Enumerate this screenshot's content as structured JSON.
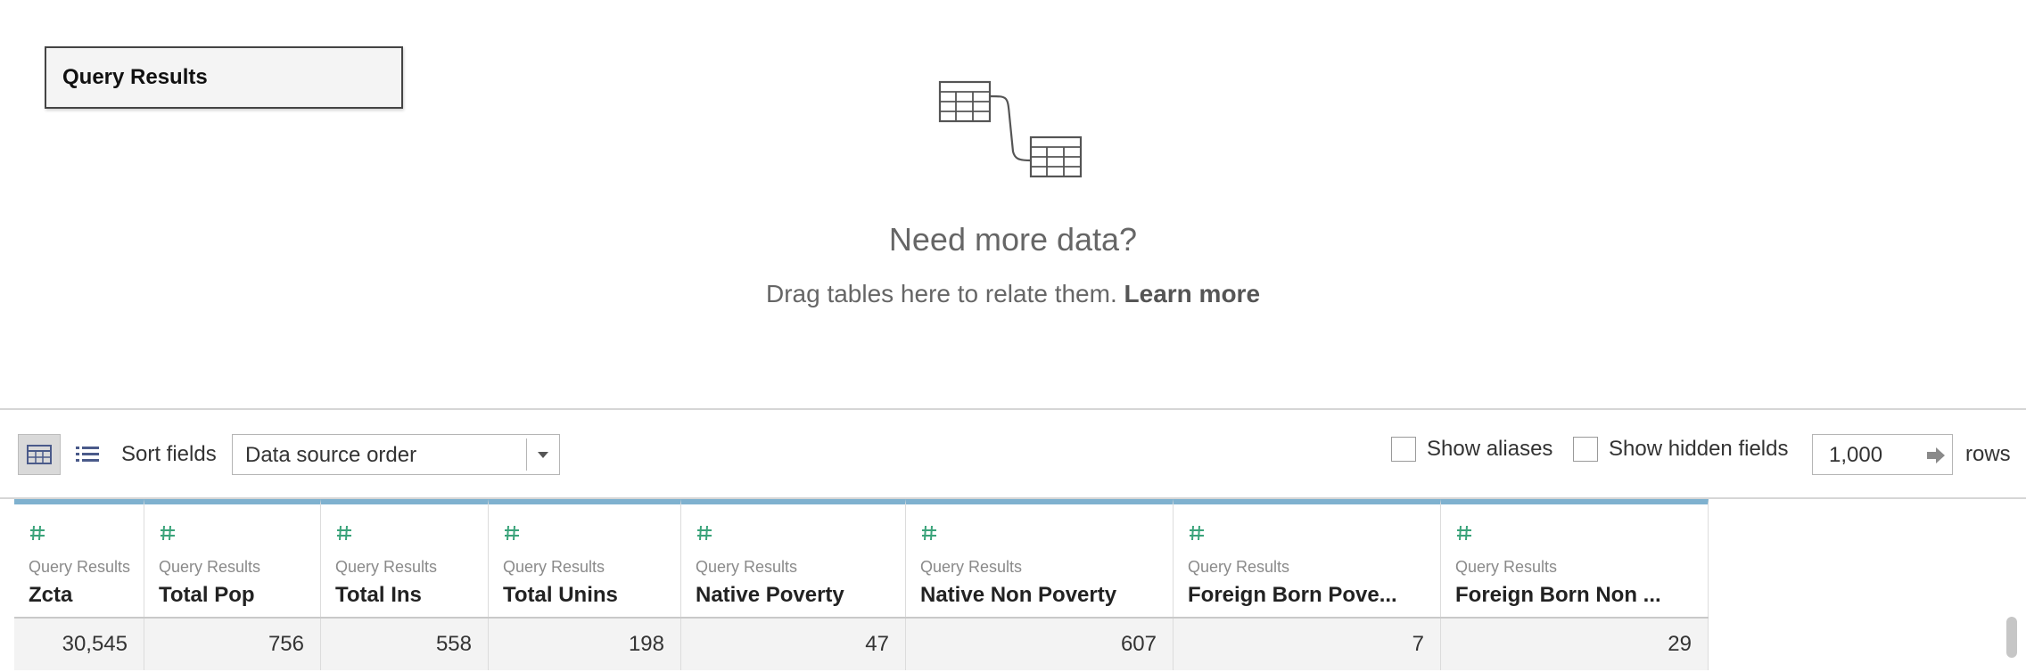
{
  "canvas": {
    "table_name": "Query Results",
    "need_title": "Need more data?",
    "need_sub": "Drag tables here to relate them.",
    "learn_more": "Learn more"
  },
  "toolbar": {
    "grid_view_icon": "grid-view-icon",
    "list_view_icon": "list-view-icon",
    "sort_label": "Sort fields",
    "sort_value": "Data source order",
    "show_aliases": "Show aliases",
    "show_hidden": "Show hidden fields",
    "rows_value": "1,000",
    "rows_label": "rows"
  },
  "grid": {
    "columns": [
      {
        "source": "Query Results",
        "name": "Zcta",
        "type_icon": "number-icon"
      },
      {
        "source": "Query Results",
        "name": "Total Pop",
        "type_icon": "number-icon"
      },
      {
        "source": "Query Results",
        "name": "Total Ins",
        "type_icon": "number-icon"
      },
      {
        "source": "Query Results",
        "name": "Total Unins",
        "type_icon": "number-icon"
      },
      {
        "source": "Query Results",
        "name": "Native Poverty",
        "type_icon": "number-icon"
      },
      {
        "source": "Query Results",
        "name": "Native Non Poverty",
        "type_icon": "number-icon"
      },
      {
        "source": "Query Results",
        "name": "Foreign Born Pove...",
        "type_icon": "number-icon"
      },
      {
        "source": "Query Results",
        "name": "Foreign Born Non ...",
        "type_icon": "number-icon"
      }
    ],
    "rows": [
      [
        "30,545",
        "756",
        "558",
        "198",
        "47",
        "607",
        "7",
        "29"
      ]
    ]
  },
  "colors": {
    "header_accent": "#7fb1cf",
    "number_icon": "#3aa37a"
  }
}
